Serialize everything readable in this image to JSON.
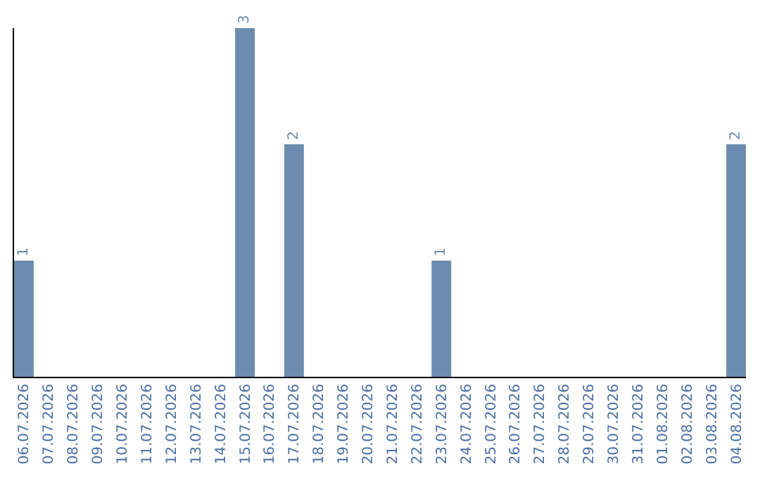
{
  "chart_data": {
    "type": "bar",
    "categories": [
      "06.07.2026",
      "07.07.2026",
      "08.07.2026",
      "09.07.2026",
      "10.07.2026",
      "11.07.2026",
      "12.07.2026",
      "13.07.2026",
      "14.07.2026",
      "15.07.2026",
      "16.07.2026",
      "17.07.2026",
      "18.07.2026",
      "19.07.2026",
      "20.07.2026",
      "21.07.2026",
      "22.07.2026",
      "23.07.2026",
      "24.07.2026",
      "25.07.2026",
      "26.07.2026",
      "27.07.2026",
      "28.07.2026",
      "29.07.2026",
      "30.07.2026",
      "31.07.2026",
      "01.08.2026",
      "02.08.2026",
      "03.08.2026",
      "04.08.2026"
    ],
    "values": [
      1,
      0,
      0,
      0,
      0,
      0,
      0,
      0,
      0,
      3,
      0,
      2,
      0,
      0,
      0,
      0,
      0,
      1,
      0,
      0,
      0,
      0,
      0,
      0,
      0,
      0,
      0,
      0,
      0,
      2
    ],
    "value_labels": [
      "1",
      null,
      null,
      null,
      null,
      null,
      null,
      null,
      null,
      "3",
      null,
      "2",
      null,
      null,
      null,
      null,
      null,
      "1",
      null,
      null,
      null,
      null,
      null,
      null,
      null,
      null,
      null,
      null,
      null,
      "2"
    ],
    "color": "#6b8cae",
    "legend": false
  }
}
